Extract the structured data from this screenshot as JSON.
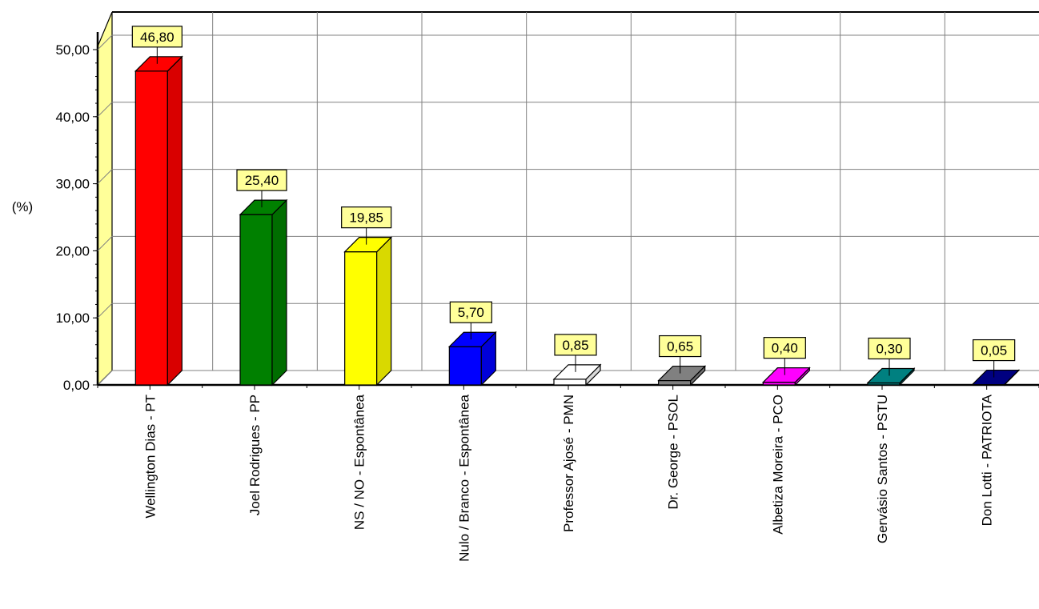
{
  "chart_data": {
    "type": "bar",
    "title": "",
    "xlabel": "",
    "ylabel": "(%)",
    "ylim": [
      0,
      50
    ],
    "yticks": [
      "0,00",
      "10,00",
      "20,00",
      "30,00",
      "40,00",
      "50,00"
    ],
    "grid": true,
    "categories": [
      "Wellington Dias - PT",
      "Joel Rodrigues - PP",
      "NS / NO - Espontânea",
      "Nulo / Branco - Espontânea",
      "Professor Ajosé - PMN",
      "Dr. George - PSOL",
      "Albetiza Moreira - PCO",
      "Gervásio Santos - PSTU",
      "Don Lotti - PATRIOTA"
    ],
    "values": [
      46.8,
      25.4,
      19.85,
      5.7,
      0.85,
      0.65,
      0.4,
      0.3,
      0.05
    ],
    "data_labels": [
      "46,80",
      "25,40",
      "19,85",
      "5,70",
      "0,85",
      "0,65",
      "0,40",
      "0,30",
      "0,05"
    ],
    "colors": [
      "#ff0000",
      "#008000",
      "#ffff00",
      "#0000ff",
      "#ffffff",
      "#808080",
      "#ff00ff",
      "#008080",
      "#000080"
    ],
    "label_box_color": "#ffff99",
    "left_wall_color": "#ffff99"
  }
}
